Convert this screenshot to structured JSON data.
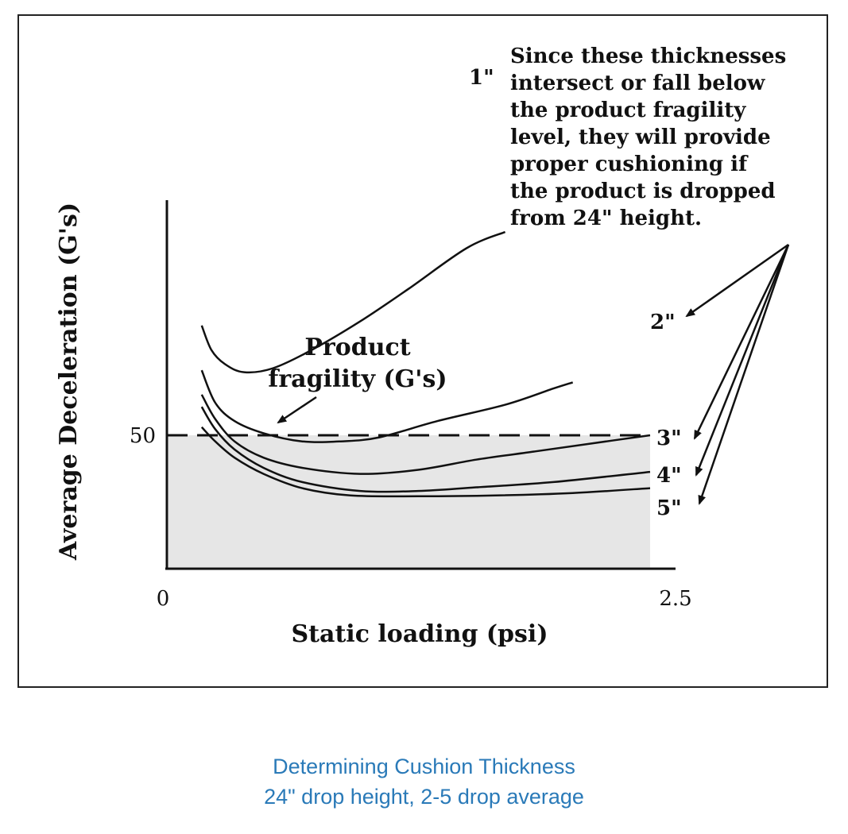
{
  "chart_data": {
    "type": "line",
    "xlabel": "Static loading (psi)",
    "ylabel": "Average Deceleration (G's)",
    "x_tick_labels": [
      "0",
      "2.5"
    ],
    "y_tick_labels": [
      "50"
    ],
    "xlim": [
      0,
      2.5
    ],
    "grid": false,
    "threshold": {
      "label": "Product fragility (G's)",
      "label_lines": [
        "Product",
        "fragility (G's)"
      ],
      "value": 50
    },
    "series": [
      {
        "name": "1\"",
        "points": [
          [
            0.18,
            77
          ],
          [
            0.23,
            71
          ],
          [
            0.3,
            67.5
          ],
          [
            0.4,
            65.5
          ],
          [
            0.55,
            66.5
          ],
          [
            0.75,
            71
          ],
          [
            1.0,
            78
          ],
          [
            1.25,
            86
          ],
          [
            1.55,
            96
          ],
          [
            1.75,
            100
          ]
        ]
      },
      {
        "name": "2\"",
        "points": [
          [
            0.18,
            66
          ],
          [
            0.25,
            58
          ],
          [
            0.35,
            53.5
          ],
          [
            0.5,
            50.5
          ],
          [
            0.7,
            48.5
          ],
          [
            0.9,
            48.5
          ],
          [
            1.1,
            49.5
          ],
          [
            1.4,
            53.5
          ],
          [
            1.75,
            57.5
          ],
          [
            2.0,
            61.5
          ],
          [
            2.1,
            63
          ]
        ]
      },
      {
        "name": "3\"",
        "points": [
          [
            0.18,
            60
          ],
          [
            0.25,
            54
          ],
          [
            0.35,
            48.5
          ],
          [
            0.5,
            44.5
          ],
          [
            0.7,
            42
          ],
          [
            1.0,
            40.5
          ],
          [
            1.3,
            41.5
          ],
          [
            1.6,
            44
          ],
          [
            1.9,
            46
          ],
          [
            2.2,
            48
          ],
          [
            2.5,
            50
          ]
        ]
      },
      {
        "name": "4\"",
        "points": [
          [
            0.18,
            57
          ],
          [
            0.25,
            51.5
          ],
          [
            0.35,
            46.5
          ],
          [
            0.5,
            42
          ],
          [
            0.7,
            38.5
          ],
          [
            1.0,
            36.3
          ],
          [
            1.3,
            36.3
          ],
          [
            1.6,
            37.2
          ],
          [
            2.0,
            38.5
          ],
          [
            2.5,
            41
          ]
        ]
      },
      {
        "name": "5\"",
        "points": [
          [
            0.18,
            52
          ],
          [
            0.25,
            48.5
          ],
          [
            0.35,
            44.5
          ],
          [
            0.5,
            40.5
          ],
          [
            0.7,
            37
          ],
          [
            0.95,
            35.2
          ],
          [
            1.3,
            35
          ],
          [
            1.7,
            35.2
          ],
          [
            2.1,
            35.8
          ],
          [
            2.5,
            37
          ]
        ]
      }
    ],
    "annotation": {
      "text_lines": [
        "Since these thicknesses",
        "intersect or fall below",
        "the product fragility",
        "level, they will provide",
        "proper cushioning if",
        "the product is dropped",
        "from 24\" height."
      ]
    }
  },
  "caption": {
    "line1": "Determining Cushion Thickness",
    "line2": "24\" drop height, 2-5 drop average"
  }
}
